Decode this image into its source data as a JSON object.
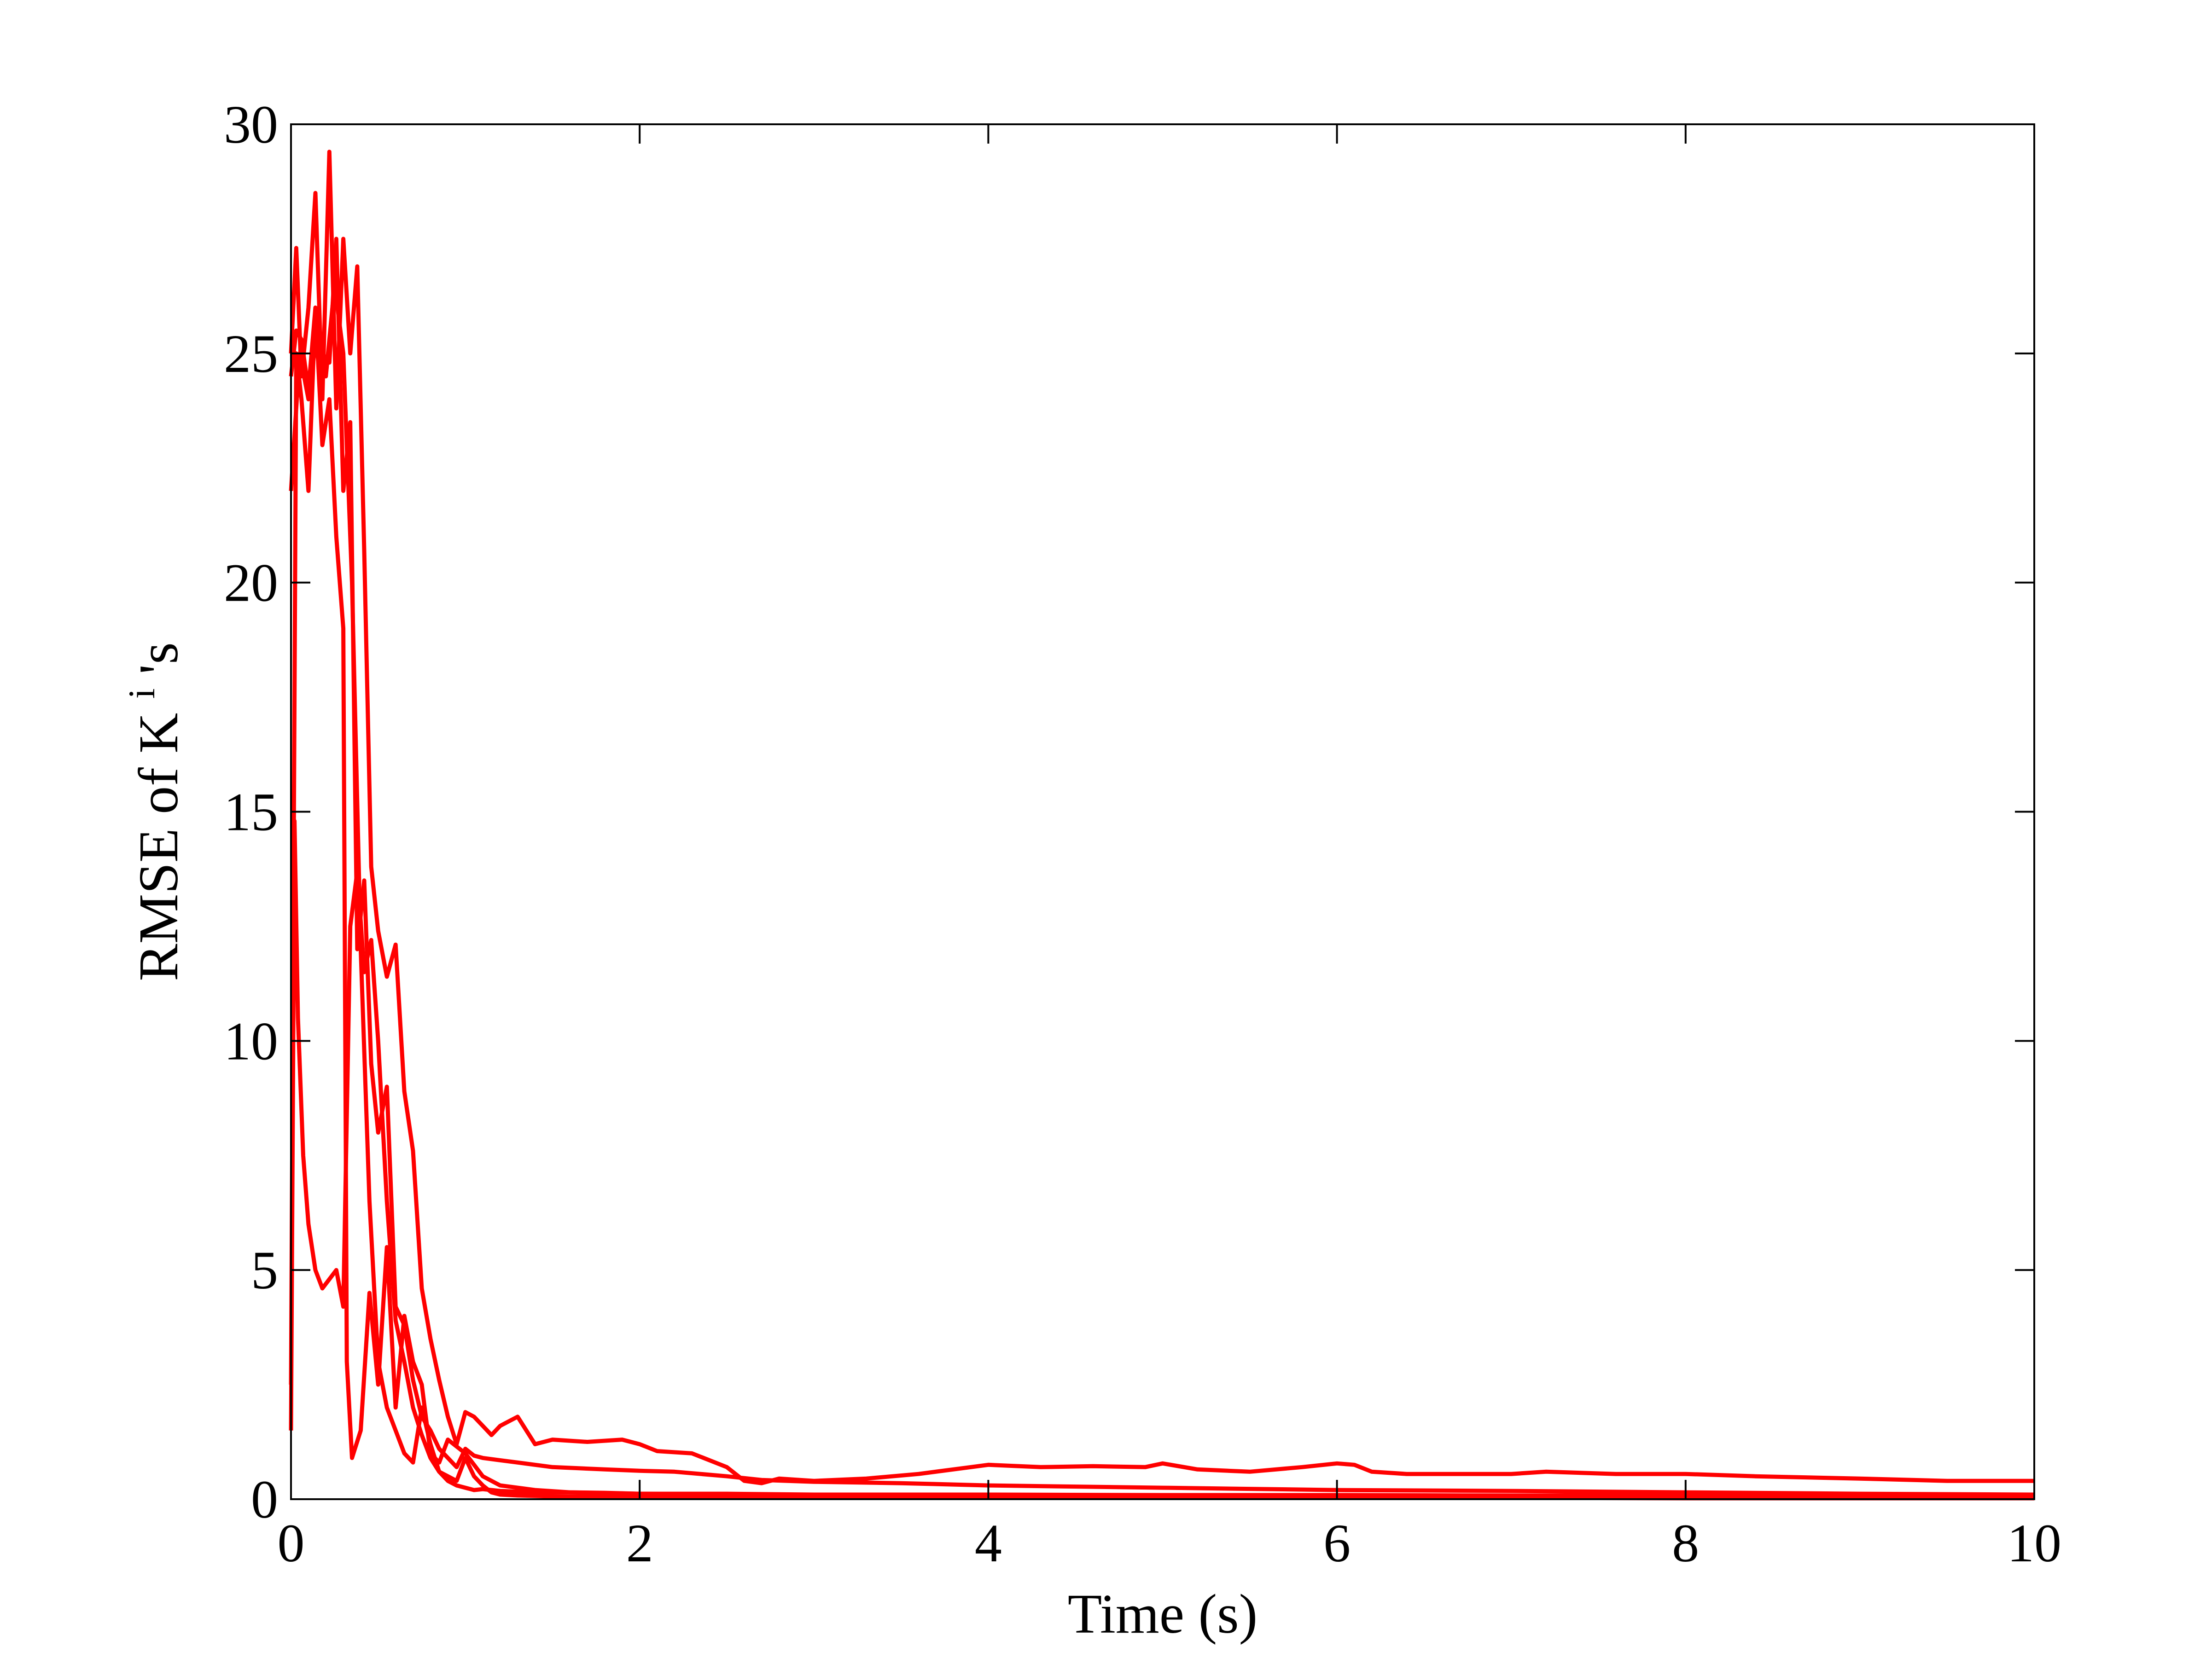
{
  "chart_data": {
    "type": "line",
    "title": "",
    "xlabel": "Time (s)",
    "ylabel": {
      "base": "RMSE of K",
      "superscript": "i",
      "suffix": "'s"
    },
    "xlim": [
      0,
      10
    ],
    "ylim": [
      0,
      30
    ],
    "xticks": [
      0,
      2,
      4,
      6,
      8,
      10
    ],
    "yticks": [
      0,
      5,
      10,
      15,
      20,
      25,
      30
    ],
    "xtick_labels": [
      "0",
      "2",
      "4",
      "6",
      "8",
      "10"
    ],
    "ytick_labels": [
      "0",
      "5",
      "10",
      "15",
      "20",
      "25",
      "30"
    ],
    "grid": false,
    "legend": "none",
    "line_color": "#ff0000",
    "series": [
      {
        "x": [
          0,
          0.03,
          0.06,
          0.1,
          0.14,
          0.18,
          0.22,
          0.26,
          0.3,
          0.34,
          0.38,
          0.42,
          0.46,
          0.5,
          0.55,
          0.6,
          0.65,
          0.7,
          0.75,
          0.8,
          0.85,
          0.9,
          0.95,
          1.0,
          1.05,
          1.1,
          1.15,
          1.2,
          1.25,
          1.3,
          1.4,
          1.5,
          1.7,
          1.9,
          2.0,
          2.1,
          2.3,
          2.5,
          2.6,
          2.7,
          2.8,
          3.0,
          3.3,
          3.6,
          3.9,
          4.0,
          4.3,
          4.6,
          4.9,
          5.0,
          5.2,
          5.5,
          5.8,
          6.0,
          6.1,
          6.2,
          6.4,
          7.0,
          7.2,
          7.6,
          8.0,
          8.4,
          9.0,
          9.5,
          10.0
        ],
        "y": [
          25.0,
          27.3,
          24.5,
          26.0,
          28.5,
          24.0,
          29.4,
          23.8,
          27.5,
          25.0,
          26.9,
          20.7,
          13.8,
          12.4,
          11.4,
          12.1,
          8.9,
          7.6,
          4.6,
          3.5,
          2.6,
          1.8,
          1.2,
          1.9,
          1.8,
          1.6,
          1.4,
          1.6,
          1.7,
          1.8,
          1.2,
          1.3,
          1.25,
          1.3,
          1.2,
          1.05,
          1.0,
          0.7,
          0.4,
          0.35,
          0.45,
          0.4,
          0.45,
          0.55,
          0.7,
          0.75,
          0.7,
          0.72,
          0.7,
          0.78,
          0.65,
          0.6,
          0.7,
          0.78,
          0.75,
          0.6,
          0.55,
          0.55,
          0.6,
          0.55,
          0.55,
          0.5,
          0.45,
          0.4,
          0.4
        ]
      },
      {
        "x": [
          0,
          0.03,
          0.06,
          0.1,
          0.14,
          0.18,
          0.22,
          0.26,
          0.3,
          0.34,
          0.38,
          0.42,
          0.46,
          0.5,
          0.55,
          0.6,
          0.65,
          0.7,
          0.75,
          0.8,
          0.85,
          0.9,
          0.95,
          1.0,
          1.05,
          1.1,
          1.2,
          1.3,
          1.5,
          1.8,
          2.0,
          2.2,
          2.5,
          2.7,
          3.0,
          3.5,
          4.0,
          5.0,
          6.0,
          7.0,
          8.0,
          9.0,
          10.0
        ],
        "y": [
          24.5,
          25.5,
          25.3,
          24.2,
          26.0,
          25.0,
          24.8,
          27.5,
          22.0,
          23.5,
          12.0,
          13.5,
          9.5,
          8.0,
          9.0,
          4.2,
          3.8,
          2.6,
          1.8,
          1.5,
          1.1,
          0.9,
          0.7,
          1.1,
          0.95,
          0.9,
          0.85,
          0.8,
          0.7,
          0.65,
          0.62,
          0.6,
          0.5,
          0.42,
          0.38,
          0.35,
          0.3,
          0.25,
          0.2,
          0.18,
          0.15,
          0.12,
          0.1
        ]
      },
      {
        "x": [
          0,
          0.02,
          0.04,
          0.07,
          0.1,
          0.14,
          0.18,
          0.22,
          0.26,
          0.3,
          0.34,
          0.38,
          0.42,
          0.46,
          0.5,
          0.55,
          0.6,
          0.65,
          0.7,
          0.75,
          0.8,
          0.85,
          0.9,
          0.95,
          1.0,
          1.05,
          1.1,
          1.2,
          1.4,
          1.6,
          1.8,
          2.0,
          2.5,
          3.0,
          4.0,
          5.0,
          6.0,
          7.0,
          8.0,
          9.0,
          10.0
        ],
        "y": [
          1.5,
          14.8,
          10.5,
          7.5,
          6.0,
          5.0,
          4.6,
          4.8,
          5.0,
          4.2,
          12.5,
          13.7,
          11.5,
          12.2,
          10.0,
          6.5,
          3.9,
          3.0,
          2.0,
          1.4,
          0.9,
          0.6,
          0.4,
          0.3,
          0.25,
          0.2,
          0.22,
          0.18,
          0.15,
          0.15,
          0.14,
          0.12,
          0.12,
          0.1,
          0.1,
          0.09,
          0.09,
          0.08,
          0.08,
          0.07,
          0.07
        ]
      },
      {
        "x": [
          0,
          0.03,
          0.06,
          0.1,
          0.14,
          0.18,
          0.22,
          0.26,
          0.3,
          0.32,
          0.35,
          0.4,
          0.45,
          0.5,
          0.55,
          0.6,
          0.65,
          0.7,
          0.75,
          0.8,
          0.85,
          0.9,
          1.0,
          1.1,
          1.2,
          1.4,
          1.6,
          2.0,
          2.5,
          3.0,
          4.0,
          5.0,
          6.0,
          7.0,
          8.0,
          9.0,
          10.0
        ],
        "y": [
          2.5,
          25.0,
          24.0,
          22.0,
          26.0,
          23.0,
          24.0,
          21.0,
          19.0,
          3.0,
          0.9,
          1.5,
          4.5,
          2.5,
          5.5,
          2.0,
          4.0,
          3.0,
          2.5,
          1.0,
          0.8,
          1.3,
          1.0,
          0.5,
          0.3,
          0.2,
          0.15,
          0.12,
          0.1,
          0.08,
          0.08,
          0.07,
          0.06,
          0.06,
          0.05,
          0.05,
          0.05
        ]
      },
      {
        "x": [
          0,
          0.05,
          0.1,
          0.15,
          0.2,
          0.25,
          0.3,
          0.35,
          0.4,
          0.45,
          0.5,
          0.55,
          0.6,
          0.65,
          0.7,
          0.75,
          0.8,
          0.85,
          0.9,
          0.95,
          1.0,
          1.05,
          1.1,
          1.15,
          1.2,
          1.3,
          1.5,
          2.0,
          3.0,
          4.0,
          5.0,
          6.0,
          7.0,
          8.0,
          9.0,
          10.0
        ],
        "y": [
          22.0,
          25.0,
          24.0,
          25.5,
          24.5,
          26.5,
          25.0,
          20.0,
          12.0,
          6.5,
          3.0,
          2.0,
          1.5,
          1.0,
          0.8,
          2.0,
          1.2,
          0.6,
          0.5,
          0.4,
          0.9,
          0.5,
          0.3,
          0.15,
          0.1,
          0.08,
          0.06,
          0.05,
          0.04,
          0.04,
          0.03,
          0.03,
          0.03,
          0.02,
          0.02,
          0.02
        ]
      }
    ]
  }
}
